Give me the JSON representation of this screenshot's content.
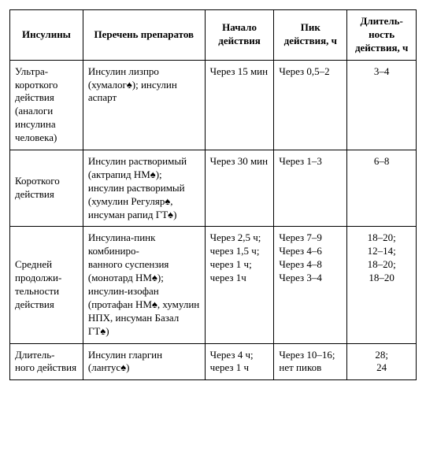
{
  "table": {
    "headers": {
      "col0": "Инсулины",
      "col1": "Перечень препаратов",
      "col2": "Начало действия",
      "col3": "Пик действия, ч",
      "col4": "Длитель-\nность действия, ч"
    },
    "rows": [
      {
        "col0": "Ультра-\nкороткого действия (аналоги инсулина человека)",
        "col1": "Инсулин лизпро (хумалог♠); инсулин аспарт",
        "col2": "Через 15 мин",
        "col3": "Через 0,5–2",
        "col4": "3–4"
      },
      {
        "col0": "Короткого действия",
        "col1": "Инсулин растворимый (актрапид НМ♠); инсулин растворимый (хумулин Регуляр♠, инсуман рапид ГТ♠)",
        "col2": "Через 30 мин",
        "col3": "Через 1–3",
        "col4": "6–8"
      },
      {
        "col0": "Средней продолжи-\nтельности действия",
        "col1": "Инсулина-пинк комбиниро-\nванного суспензия (монотард НМ♠); инсулин-изофан (протафан НМ♠, хумулин НПХ, инсуман Базал ГТ♠)",
        "col2": "Через 2,5 ч; через 1,5 ч; через 1 ч; через 1ч",
        "col3": "Через 7–9\nЧерез 4–6\nЧерез 4–8\nЧерез 3–4",
        "col4": "18–20;\n12–14;\n18–20;\n18–20"
      },
      {
        "col0": "Длитель-\nного действия",
        "col1": "Инсулин гларгин (лантус♠)",
        "col2": "Через 4 ч; через 1 ч",
        "col3": "Через 10–16; нет пиков",
        "col4": "28;\n24"
      }
    ],
    "style": {
      "font_family": "Times New Roman",
      "font_size_pt": 10,
      "header_font_weight": "bold",
      "border_color": "#000000",
      "background_color": "#ffffff",
      "text_color": "#000000",
      "column_widths_pct": [
        18,
        30,
        17,
        18,
        17
      ],
      "col4_align": "center",
      "col0_valign_rows": [
        "top",
        "middle",
        "middle",
        "top"
      ]
    }
  }
}
